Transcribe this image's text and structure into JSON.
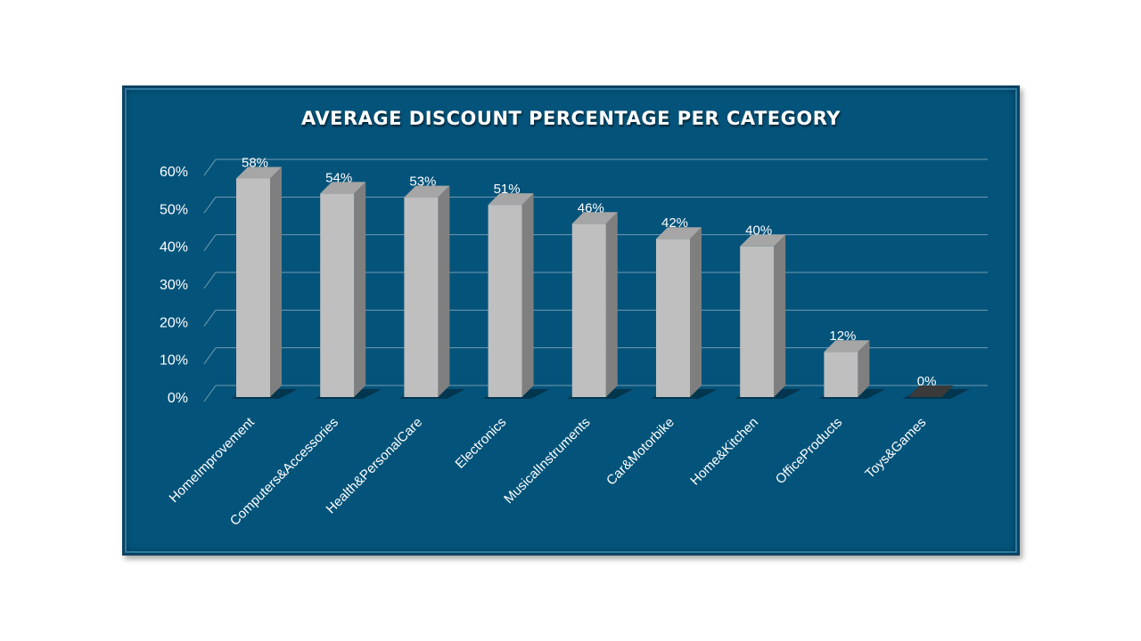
{
  "chart_data": {
    "type": "bar",
    "title": "AVERAGE DISCOUNT PERCENTAGE PER CATEGORY",
    "categories": [
      "HomeImprovement",
      "Computers&Accessories",
      "Health&PersonalCare",
      "Electronics",
      "MusicalInstruments",
      "Car&Motorbike",
      "Home&Kitchen",
      "OfficeProducts",
      "Toys&Games"
    ],
    "values": [
      58,
      54,
      53,
      51,
      46,
      42,
      40,
      12,
      0
    ],
    "data_labels": [
      "58%",
      "54%",
      "53%",
      "51%",
      "46%",
      "42%",
      "40%",
      "12%",
      "0%"
    ],
    "y_ticks": [
      "0%",
      "10%",
      "20%",
      "30%",
      "40%",
      "50%",
      "60%"
    ],
    "ylim": [
      0,
      60
    ],
    "xlabel": "",
    "ylabel": "",
    "grid": true,
    "legend": "none",
    "style": "3d-column",
    "colors": {
      "background": "#04537a",
      "bar_front": "#bfbfbf",
      "bar_side": "#7f7f7f",
      "bar_top": "#a6a6a6",
      "gridline": "#6f9bb3",
      "text": "#ffffff"
    }
  }
}
